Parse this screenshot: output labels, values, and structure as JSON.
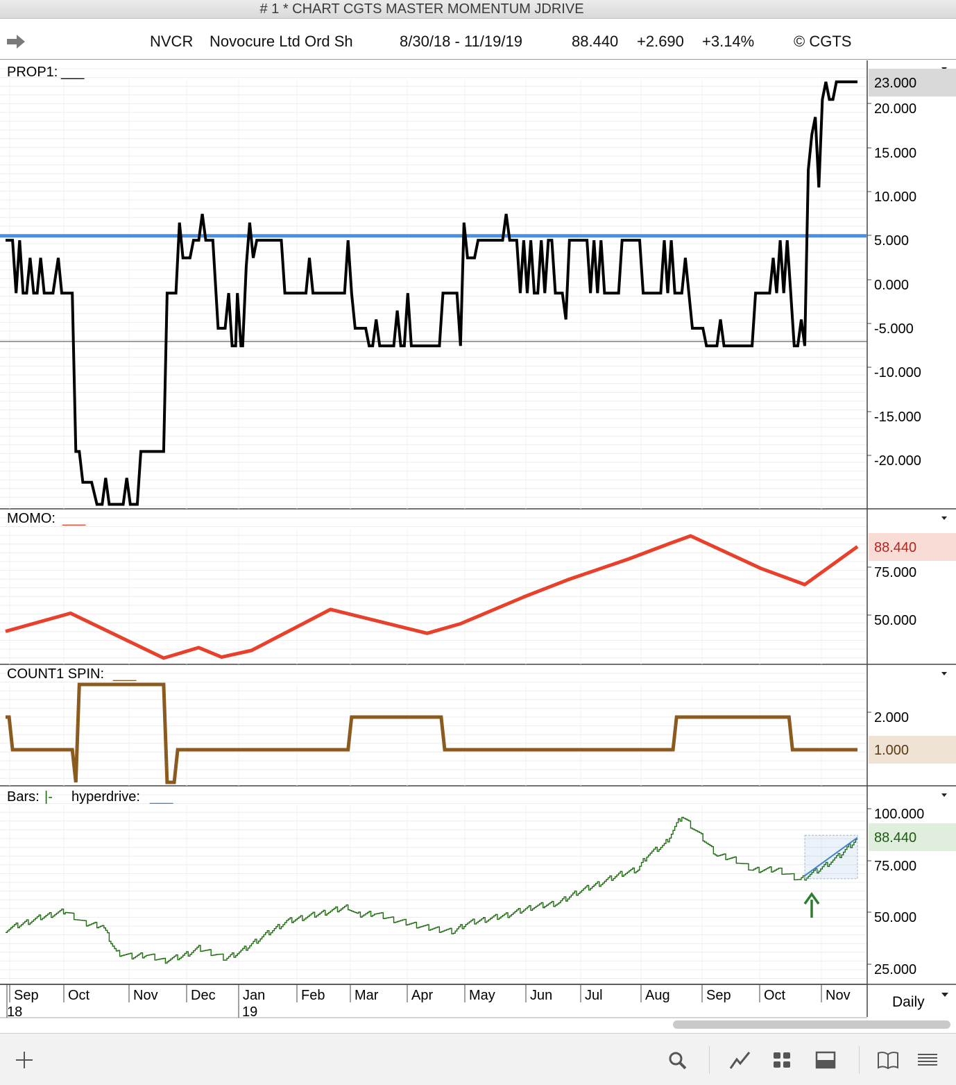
{
  "window": {
    "title": "# 1 * CHART CGTS MASTER MOMENTUM JDRIVE"
  },
  "header": {
    "symbol": "NVCR",
    "company": "Novocure Ltd Ord Sh",
    "date_range": "8/30/18 - 11/19/19",
    "last": "88.440",
    "change": "+2.690",
    "change_pct": "+3.14%",
    "copyright": "© CGTS",
    "nav_icon": "arrow-right-icon"
  },
  "colors": {
    "prop1": "#000000",
    "momo": "#e8402a",
    "count": "#8b5a1e",
    "bars": "#1e6b10",
    "hyperdrive": "#3f84c7",
    "blue_line": "#4a90e2",
    "up_arrow": "#2e7d2e"
  },
  "x_axis": {
    "months": [
      "Sep",
      "Oct",
      "Nov",
      "Dec",
      "Jan",
      "Feb",
      "Mar",
      "Apr",
      "May",
      "Jun",
      "Jul",
      "Aug",
      "Sep",
      "Oct",
      "Nov"
    ],
    "years": [
      "18",
      "19"
    ],
    "period": "Daily"
  },
  "toolbar": {
    "icons": [
      "plus-icon",
      "search-icon",
      "line-chart-icon",
      "grid-icon",
      "panel-icon",
      "book-icon",
      "menu-icon"
    ]
  },
  "chart_data": [
    {
      "type": "line",
      "label_prefix": "PROP1:",
      "label_suffix": "___",
      "last_value_label": "23.000",
      "ylim": [
        -25,
        25
      ],
      "yticks": [
        "20.000",
        "15.000",
        "10.000",
        "5.000",
        "0.000",
        "-5.000",
        "-10.000",
        "-15.000",
        "-20.000"
      ],
      "reference_lines": [
        {
          "y": 5.5,
          "color": "#4a90e2"
        },
        {
          "y": -6.5,
          "color": "#555555"
        }
      ],
      "series": [
        {
          "points": [
            [
              0,
              5
            ],
            [
              4,
              5
            ],
            [
              6,
              -1
            ],
            [
              8,
              5
            ],
            [
              10,
              -1
            ],
            [
              12,
              -1
            ],
            [
              14,
              3
            ],
            [
              16,
              -1
            ],
            [
              18,
              -1
            ],
            [
              20,
              3
            ],
            [
              22,
              -1
            ],
            [
              27,
              -1
            ],
            [
              30,
              3
            ],
            [
              32,
              -1
            ],
            [
              38,
              -1
            ],
            [
              40,
              -19
            ],
            [
              42,
              -19
            ],
            [
              44,
              -22.5
            ],
            [
              49,
              -22.5
            ],
            [
              52,
              -25
            ],
            [
              55,
              -25
            ],
            [
              57,
              -22
            ],
            [
              59,
              -25
            ],
            [
              67,
              -25
            ],
            [
              69,
              -22
            ],
            [
              71,
              -25
            ],
            [
              75,
              -25
            ],
            [
              77,
              -19
            ],
            [
              90,
              -19
            ],
            [
              92,
              -1
            ],
            [
              97,
              -1
            ],
            [
              99,
              7
            ],
            [
              101,
              3
            ],
            [
              105,
              3
            ],
            [
              107,
              5
            ],
            [
              110,
              5
            ],
            [
              112,
              8
            ],
            [
              114,
              5
            ],
            [
              118,
              5
            ],
            [
              121,
              -5
            ],
            [
              125,
              -5
            ],
            [
              127,
              -1
            ],
            [
              129,
              -7
            ],
            [
              131,
              -7
            ],
            [
              132,
              -1
            ],
            [
              134,
              -7
            ],
            [
              135,
              -7
            ],
            [
              137,
              2
            ],
            [
              139,
              7
            ],
            [
              141,
              3
            ],
            [
              143,
              5
            ],
            [
              157,
              5
            ],
            [
              159,
              -1
            ],
            [
              171,
              -1
            ],
            [
              173,
              3
            ],
            [
              175,
              -1
            ],
            [
              193,
              -1
            ],
            [
              195,
              5
            ],
            [
              197,
              -1
            ],
            [
              199,
              -5
            ],
            [
              205,
              -5
            ],
            [
              207,
              -7
            ],
            [
              209,
              -7
            ],
            [
              211,
              -4
            ],
            [
              213,
              -7
            ],
            [
              221,
              -7
            ],
            [
              223,
              -3
            ],
            [
              225,
              -7
            ],
            [
              227,
              -7
            ],
            [
              229,
              -1
            ],
            [
              231,
              -7
            ],
            [
              247,
              -7
            ],
            [
              249,
              -1
            ],
            [
              257,
              -1
            ],
            [
              259,
              -7
            ],
            [
              261,
              7
            ],
            [
              263,
              3
            ],
            [
              267,
              3
            ],
            [
              269,
              5
            ],
            [
              283,
              5
            ],
            [
              285,
              8
            ],
            [
              287,
              5
            ],
            [
              291,
              5
            ],
            [
              293,
              -1
            ],
            [
              295,
              5
            ],
            [
              297,
              -1
            ],
            [
              299,
              5
            ],
            [
              301,
              -1
            ],
            [
              303,
              -1
            ],
            [
              305,
              5
            ],
            [
              307,
              -1
            ],
            [
              309,
              5
            ],
            [
              311,
              5
            ],
            [
              313,
              -1
            ],
            [
              317,
              -1
            ],
            [
              319,
              -4
            ],
            [
              321,
              5
            ],
            [
              331,
              5
            ],
            [
              333,
              -1
            ],
            [
              335,
              5
            ],
            [
              337,
              -1
            ],
            [
              339,
              5
            ],
            [
              341,
              -1
            ],
            [
              349,
              -1
            ],
            [
              351,
              5
            ],
            [
              361,
              5
            ],
            [
              363,
              -1
            ],
            [
              373,
              -1
            ],
            [
              375,
              5
            ],
            [
              377,
              -1
            ],
            [
              379,
              5
            ],
            [
              381,
              -1
            ],
            [
              385,
              -1
            ],
            [
              387,
              3
            ],
            [
              391,
              -5
            ],
            [
              397,
              -5
            ],
            [
              399,
              -7
            ],
            [
              405,
              -7
            ],
            [
              407,
              -4
            ],
            [
              409,
              -7
            ],
            [
              425,
              -7
            ],
            [
              427,
              -1
            ],
            [
              435,
              -1
            ],
            [
              437,
              3
            ],
            [
              439,
              -1
            ],
            [
              441,
              5
            ],
            [
              443,
              -1
            ],
            [
              445,
              5
            ],
            [
              447,
              -1
            ],
            [
              449,
              -7
            ],
            [
              451,
              -7
            ],
            [
              453,
              -4
            ],
            [
              455,
              -7
            ],
            [
              457,
              13
            ],
            [
              459,
              17
            ],
            [
              461,
              19
            ],
            [
              463,
              11
            ],
            [
              465,
              21
            ],
            [
              467,
              23
            ],
            [
              469,
              21
            ],
            [
              471,
              21
            ],
            [
              473,
              23
            ],
            [
              485,
              23
            ]
          ]
        }
      ]
    },
    {
      "type": "line",
      "label_prefix": "MOMO:",
      "label_suffix": "___",
      "last_value_label": "88.440",
      "ylim": [
        28,
        95
      ],
      "yticks": [
        "75.000",
        "50.000"
      ],
      "series": [
        {
          "points": [
            [
              0,
              44
            ],
            [
              37,
              53.5
            ],
            [
              90,
              30
            ],
            [
              110,
              35.5
            ],
            [
              123,
              30.5
            ],
            [
              140,
              34
            ],
            [
              185,
              55.5
            ],
            [
              240,
              43
            ],
            [
              259,
              48
            ],
            [
              295,
              62
            ],
            [
              320,
              71
            ],
            [
              355,
              82
            ],
            [
              378,
              90
            ],
            [
              390,
              94
            ],
            [
              430,
              77
            ],
            [
              455,
              68.5
            ],
            [
              485,
              88.4
            ]
          ]
        }
      ]
    },
    {
      "type": "line",
      "label_prefix": "COUNT1 SPIN:",
      "label_suffix": "___",
      "last_value_label": "1.000",
      "ylim": [
        -0.1,
        3.2
      ],
      "yticks": [
        "2.000"
      ],
      "series": [
        {
          "points": [
            [
              0,
              2
            ],
            [
              2,
              2
            ],
            [
              4,
              1
            ],
            [
              38,
              1
            ],
            [
              40,
              0
            ],
            [
              42,
              3
            ],
            [
              90,
              3
            ],
            [
              92,
              0
            ],
            [
              96,
              0
            ],
            [
              98,
              1
            ],
            [
              195,
              1
            ],
            [
              197,
              2
            ],
            [
              248,
              2
            ],
            [
              250,
              1
            ],
            [
              380,
              1
            ],
            [
              382,
              2
            ],
            [
              446,
              2
            ],
            [
              448,
              1
            ],
            [
              485,
              1
            ]
          ]
        }
      ]
    },
    {
      "type": "line",
      "label_bars": "Bars:",
      "label_bars_suffix": "|-",
      "label_hyper": "hyperdrive:",
      "label_hyper_suffix": "___",
      "last_value_label": "88.440",
      "ylim": [
        21,
        103
      ],
      "yticks": [
        "100.000",
        "75.000",
        "50.000",
        "25.000"
      ],
      "series": [
        {
          "name": "Bars",
          "points": [
            [
              0,
              44
            ],
            [
              10,
              47
            ],
            [
              20,
              50
            ],
            [
              34,
              53
            ],
            [
              45,
              47
            ],
            [
              55,
              46
            ],
            [
              63,
              33
            ],
            [
              72,
              31
            ],
            [
              80,
              32
            ],
            [
              90,
              29
            ],
            [
              100,
              31
            ],
            [
              110,
              35
            ],
            [
              120,
              32
            ],
            [
              125,
              30
            ],
            [
              135,
              34
            ],
            [
              145,
              40
            ],
            [
              160,
              48
            ],
            [
              175,
              51
            ],
            [
              195,
              55
            ],
            [
              200,
              51
            ],
            [
              210,
              52
            ],
            [
              220,
              49
            ],
            [
              240,
              45
            ],
            [
              255,
              43
            ],
            [
              262,
              47
            ],
            [
              285,
              51
            ],
            [
              300,
              55
            ],
            [
              315,
              57
            ],
            [
              325,
              62
            ],
            [
              340,
              67
            ],
            [
              350,
              71
            ],
            [
              360,
              73
            ],
            [
              365,
              80
            ],
            [
              375,
              85
            ],
            [
              385,
              99
            ],
            [
              395,
              90
            ],
            [
              405,
              80
            ],
            [
              415,
              78
            ],
            [
              425,
              73
            ],
            [
              440,
              73
            ],
            [
              452,
              68
            ],
            [
              463,
              73
            ],
            [
              475,
              80
            ],
            [
              485,
              88.4
            ]
          ]
        },
        {
          "name": "hyperdrive",
          "points": [
            [
              455,
              70
            ],
            [
              485,
              88.4
            ]
          ]
        }
      ]
    }
  ]
}
